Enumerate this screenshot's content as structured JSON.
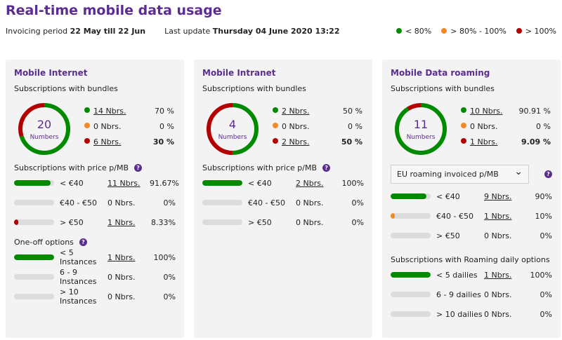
{
  "title": "Real-time mobile data usage",
  "meta": {
    "period_label": "Invoicing period",
    "period_value": "22 May till 22 Jun",
    "update_label": "Last update",
    "update_value": "Thursday 04 June 2020 13:22"
  },
  "legend": [
    {
      "label": "< 80%",
      "color": "#008a00"
    },
    {
      "label": "> 80% - 100%",
      "color": "#f08a24"
    },
    {
      "label": "> 100%",
      "color": "#b30000"
    }
  ],
  "colors": {
    "green": "#008a00",
    "orange": "#f08a24",
    "red": "#b30000",
    "purple": "#5c2d91"
  },
  "cards": [
    {
      "title": "Mobile Internet",
      "bundles_label": "Subscriptions with bundles",
      "total": "20",
      "total_label": "Numbers",
      "bundles": [
        {
          "count": "14 Nbrs.",
          "pct": "70 %",
          "share": 70,
          "color": "#008a00",
          "link": true,
          "bold": false
        },
        {
          "count": "0 Nbrs.",
          "pct": "0 %",
          "share": 0,
          "color": "#f08a24",
          "link": false,
          "bold": false
        },
        {
          "count": "6 Nbrs.",
          "pct": "30 %",
          "share": 30,
          "color": "#b30000",
          "link": true,
          "bold": true
        }
      ],
      "sections": [
        {
          "title": "Subscriptions with price p/MB",
          "help": "?",
          "rows": [
            {
              "label": "< €40",
              "count": "11 Nbrs.",
              "pct": "91.67%",
              "fill": 91.67,
              "color": "#008a00",
              "link": true
            },
            {
              "label": "€40 - €50",
              "count": "0 Nbrs.",
              "pct": "0%",
              "fill": 0,
              "color": "#f08a24",
              "link": false
            },
            {
              "label": "> €50",
              "count": "1 Nbrs.",
              "pct": "8.33%",
              "fill": 8.33,
              "color": "#b30000",
              "link": true
            }
          ]
        },
        {
          "title": "One-off options",
          "help": "?",
          "rows": [
            {
              "label": "< 5 Instances",
              "count": "1 Nbrs.",
              "pct": "100%",
              "fill": 100,
              "color": "#008a00",
              "link": true
            },
            {
              "label": "6 - 9 Instances",
              "count": "0 Nbrs.",
              "pct": "0%",
              "fill": 0,
              "color": "#f08a24",
              "link": false
            },
            {
              "label": "> 10 Instances",
              "count": "0 Nbrs.",
              "pct": "0%",
              "fill": 0,
              "color": "#b30000",
              "link": false
            }
          ]
        }
      ]
    },
    {
      "title": "Mobile Intranet",
      "bundles_label": "Subscriptions with bundles",
      "total": "4",
      "total_label": "Numbers",
      "bundles": [
        {
          "count": "2 Nbrs.",
          "pct": "50 %",
          "share": 50,
          "color": "#008a00",
          "link": true,
          "bold": false
        },
        {
          "count": "0 Nbrs.",
          "pct": "0 %",
          "share": 0,
          "color": "#f08a24",
          "link": false,
          "bold": false
        },
        {
          "count": "2 Nbrs.",
          "pct": "50 %",
          "share": 50,
          "color": "#b30000",
          "link": true,
          "bold": true
        }
      ],
      "sections": [
        {
          "title": "Subscriptions with price p/MB",
          "help": "?",
          "rows": [
            {
              "label": "< €40",
              "count": "2 Nbrs.",
              "pct": "100%",
              "fill": 100,
              "color": "#008a00",
              "link": true
            },
            {
              "label": "€40 - €50",
              "count": "0 Nbrs.",
              "pct": "0%",
              "fill": 0,
              "color": "#f08a24",
              "link": false
            },
            {
              "label": "> €50",
              "count": "0 Nbrs.",
              "pct": "0%",
              "fill": 0,
              "color": "#b30000",
              "link": false
            }
          ]
        }
      ]
    },
    {
      "title": "Mobile Data roaming",
      "bundles_label": "Subscriptions with bundles",
      "total": "11",
      "total_label": "Numbers",
      "bundles": [
        {
          "count": "10 Nbrs.",
          "pct": "90.91 %",
          "share": 90.91,
          "color": "#008a00",
          "link": true,
          "bold": false
        },
        {
          "count": "0 Nbrs.",
          "pct": "0 %",
          "share": 0,
          "color": "#f08a24",
          "link": false,
          "bold": false
        },
        {
          "count": "1 Nbrs.",
          "pct": "9.09 %",
          "share": 9.09,
          "color": "#b30000",
          "link": true,
          "bold": true
        }
      ],
      "select": {
        "value": "EU roaming invoiced p/MB",
        "help": "?"
      },
      "sections": [
        {
          "title": "",
          "rows": [
            {
              "label": "< €40",
              "count": "9 Nbrs.",
              "pct": "90%",
              "fill": 90,
              "color": "#008a00",
              "link": true
            },
            {
              "label": "€40 - €50",
              "count": "1 Nbrs.",
              "pct": "10%",
              "fill": 10,
              "color": "#f08a24",
              "link": true
            },
            {
              "label": "> €50",
              "count": "0 Nbrs.",
              "pct": "0%",
              "fill": 0,
              "color": "#b30000",
              "link": false
            }
          ]
        },
        {
          "title": "Subscriptions with Roaming daily options",
          "rows": [
            {
              "label": "< 5 dailies",
              "count": "1 Nbrs.",
              "pct": "100%",
              "fill": 100,
              "color": "#008a00",
              "link": true
            },
            {
              "label": "6 - 9 dailies",
              "count": "0 Nbrs.",
              "pct": "0%",
              "fill": 0,
              "color": "#f08a24",
              "link": false
            },
            {
              "label": "> 10 dailies",
              "count": "0 Nbrs.",
              "pct": "0%",
              "fill": 0,
              "color": "#b30000",
              "link": false
            }
          ]
        }
      ]
    }
  ]
}
